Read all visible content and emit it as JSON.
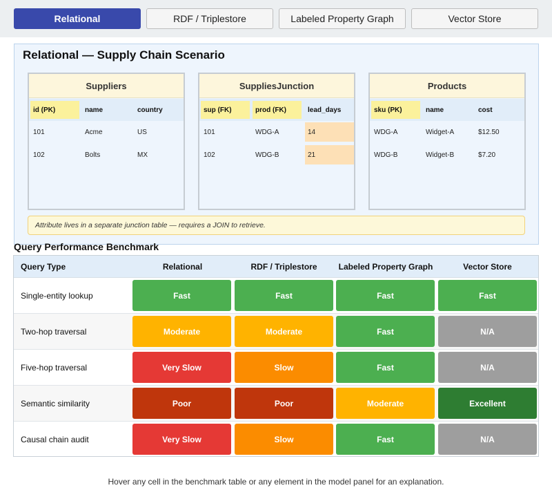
{
  "tabs": [
    {
      "label": "Relational",
      "active": true
    },
    {
      "label": "RDF / Triplestore",
      "active": false
    },
    {
      "label": "Labeled Property Graph",
      "active": false
    },
    {
      "label": "Vector Store",
      "active": false
    }
  ],
  "panel": {
    "title": "Relational — Supply Chain Scenario",
    "tables": [
      {
        "name": "Suppliers",
        "columns": [
          "id (PK)",
          "name",
          "country"
        ],
        "rows": [
          [
            "101",
            "Acme",
            "US"
          ],
          [
            "102",
            "Bolts",
            "MX"
          ]
        ]
      },
      {
        "name": "SuppliesJunction",
        "columns": [
          "sup (FK)",
          "prod (FK)",
          "lead_days"
        ],
        "rows": [
          [
            "101",
            "WDG-A",
            "14"
          ],
          [
            "102",
            "WDG-B",
            "21"
          ]
        ]
      },
      {
        "name": "Products",
        "columns": [
          "sku (PK)",
          "name",
          "cost"
        ],
        "rows": [
          [
            "WDG-A",
            "Widget-A",
            "$12.50"
          ],
          [
            "WDG-B",
            "Widget-B",
            "$7.20"
          ]
        ]
      }
    ],
    "note": "Attribute lives in a separate junction table — requires a JOIN to retrieve."
  },
  "benchmark": {
    "title": "Query Performance Benchmark",
    "headers": [
      "Query Type",
      "Relational",
      "RDF / Triplestore",
      "Labeled Property Graph",
      "Vector Store"
    ],
    "rows": [
      {
        "label": "Single-entity lookup",
        "cells": [
          "Fast",
          "Fast",
          "Fast",
          "Fast"
        ]
      },
      {
        "label": "Two-hop traversal",
        "cells": [
          "Moderate",
          "Moderate",
          "Fast",
          "N/A"
        ]
      },
      {
        "label": "Five-hop traversal",
        "cells": [
          "Very Slow",
          "Slow",
          "Fast",
          "N/A"
        ]
      },
      {
        "label": "Semantic similarity",
        "cells": [
          "Poor",
          "Poor",
          "Moderate",
          "Excellent"
        ]
      },
      {
        "label": "Causal chain audit",
        "cells": [
          "Very Slow",
          "Slow",
          "Fast",
          "N/A"
        ]
      }
    ]
  },
  "colors": {
    "Fast": "#4caf50",
    "Moderate": "#ffb300",
    "Very Slow": "#e53935",
    "Slow": "#fb8c00",
    "N/A": "#9e9e9e",
    "Poor": "#bf360c",
    "Excellent": "#2e7d32",
    "accent": "#3949ab"
  },
  "footer": "Hover any cell in the benchmark table or any element in the model panel for an explanation."
}
